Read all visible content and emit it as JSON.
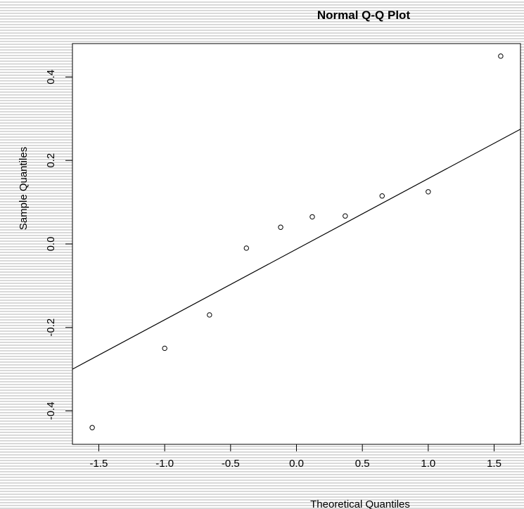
{
  "chart_data": {
    "type": "scatter",
    "title": "Normal Q-Q Plot",
    "xlabel": "Theoretical Quantiles",
    "ylabel": "Sample Quantiles",
    "xlim": [
      -1.7,
      1.7
    ],
    "ylim": [
      -0.48,
      0.48
    ],
    "xticks": [
      -1.5,
      -1.0,
      -0.5,
      0.0,
      0.5,
      1.0,
      1.5
    ],
    "xtick_labels": [
      "-1.5",
      "-1.0",
      "-0.5",
      "0.0",
      "0.5",
      "1.0",
      "1.5"
    ],
    "yticks": [
      -0.4,
      -0.2,
      0.0,
      0.2,
      0.4
    ],
    "ytick_labels": [
      "-0.4",
      "-0.2",
      "0.0",
      "0.2",
      "0.4"
    ],
    "grid": false,
    "points": [
      {
        "x": -1.55,
        "y": -0.44
      },
      {
        "x": -1.0,
        "y": -0.25
      },
      {
        "x": -0.66,
        "y": -0.17
      },
      {
        "x": -0.38,
        "y": -0.01
      },
      {
        "x": -0.12,
        "y": 0.04
      },
      {
        "x": 0.12,
        "y": 0.065
      },
      {
        "x": 0.37,
        "y": 0.067
      },
      {
        "x": 0.65,
        "y": 0.115
      },
      {
        "x": 1.0,
        "y": 0.125
      },
      {
        "x": 1.55,
        "y": 0.45
      }
    ],
    "reference_line": {
      "x1": -1.7,
      "y1": -0.3,
      "x2": 1.7,
      "y2": 0.275
    },
    "colors": {
      "points": "#000000",
      "line": "#000000",
      "axes": "#000000"
    }
  }
}
